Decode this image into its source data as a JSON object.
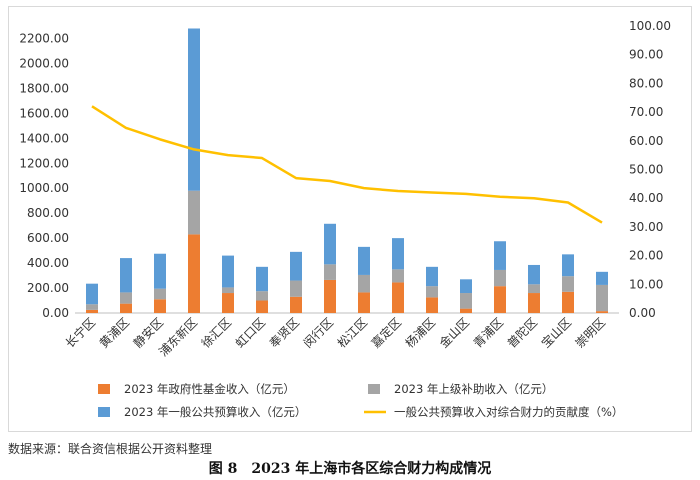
{
  "source_note": "数据来源：联合资信根据公开资料整理",
  "caption": "图 8　2023 年上海市各区综合财力构成情况",
  "colors": {
    "fund": "#ED7D31",
    "subsidy": "#A5A5A5",
    "general": "#5B9BD5",
    "line": "#FFC000"
  },
  "chart_data": {
    "type": "bar",
    "stacked": true,
    "categories": [
      "长宁区",
      "黄浦区",
      "静安区",
      "浦东新区",
      "徐汇区",
      "虹口区",
      "奉贤区",
      "闵行区",
      "松江区",
      "嘉定区",
      "杨浦区",
      "金山区",
      "青浦区",
      "普陀区",
      "宝山区",
      "崇明区"
    ],
    "series": [
      {
        "name": "2023 年政府性基金收入（亿元）",
        "values": [
          25,
          75,
          110,
          630,
          160,
          100,
          130,
          265,
          165,
          245,
          125,
          35,
          215,
          160,
          170,
          15
        ]
      },
      {
        "name": "2023 年上级补助收入（亿元）",
        "values": [
          45,
          90,
          85,
          350,
          45,
          75,
          130,
          125,
          140,
          105,
          90,
          125,
          130,
          70,
          125,
          210
        ]
      },
      {
        "name": "2023 年一般公共预算收入（亿元）",
        "values": [
          165,
          275,
          280,
          1300,
          255,
          195,
          230,
          325,
          225,
          250,
          155,
          110,
          230,
          155,
          175,
          105
        ]
      }
    ],
    "line_series": {
      "name": "一般公共预算收入对综合财力的贡献度（%）",
      "axis": "right",
      "values": [
        72,
        64.5,
        60.5,
        57,
        55,
        54,
        47,
        46,
        43.5,
        42.5,
        42,
        41.5,
        40.5,
        40,
        38.5,
        31.5
      ]
    },
    "y_left": {
      "min": 0,
      "max": 2300,
      "ticks": [
        "0.00",
        "200.00",
        "400.00",
        "600.00",
        "800.00",
        "1000.00",
        "1200.00",
        "1400.00",
        "1600.00",
        "1800.00",
        "2000.00",
        "2200.00"
      ]
    },
    "y_right": {
      "min": 0,
      "max": 100,
      "ticks": [
        "0.00",
        "10.00",
        "20.00",
        "30.00",
        "40.00",
        "50.00",
        "60.00",
        "70.00",
        "80.00",
        "90.00",
        "100.00"
      ]
    },
    "legend": {
      "position": "bottom",
      "items": [
        {
          "label": "2023 年政府性基金收入（亿元）",
          "series": "fund"
        },
        {
          "label": "2023 年上级补助收入（亿元）",
          "series": "subsidy"
        },
        {
          "label": "2023 年一般公共预算收入（亿元）",
          "series": "general"
        },
        {
          "label": "一般公共预算收入对综合财力的贡献度（%）",
          "series": "line"
        }
      ]
    }
  }
}
